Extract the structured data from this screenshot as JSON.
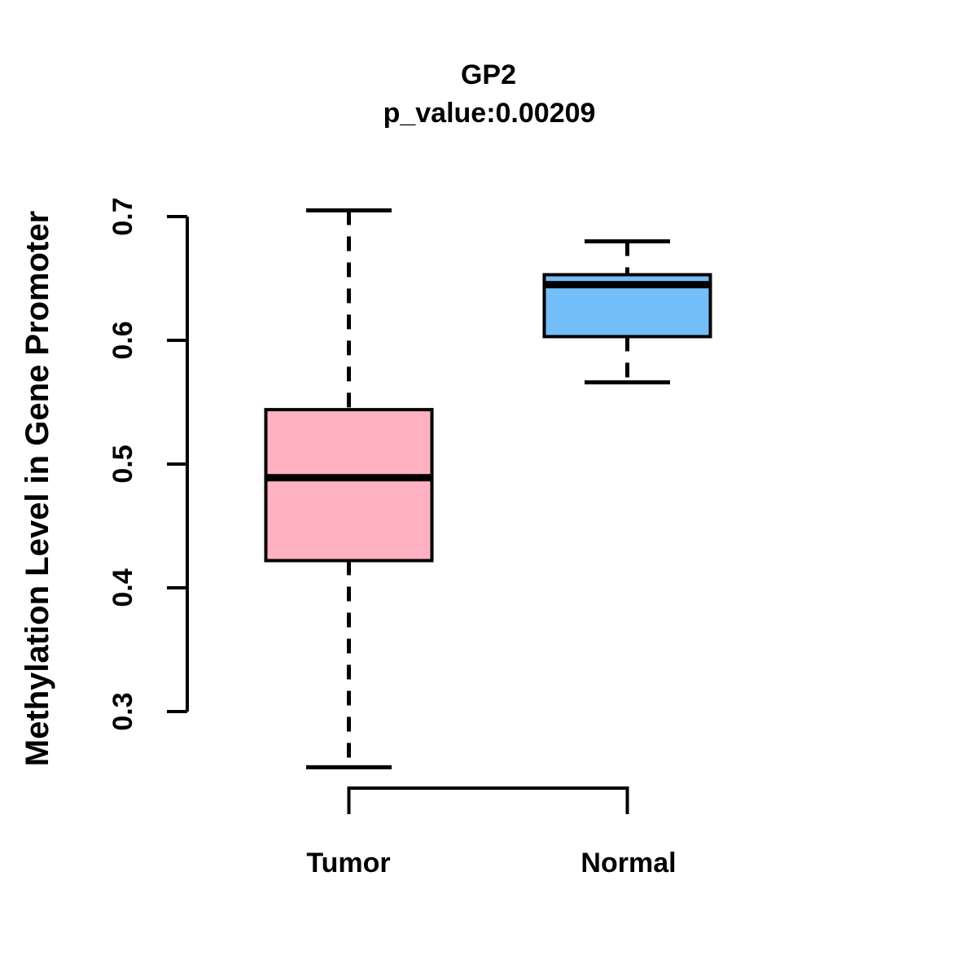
{
  "page": {
    "background": "#FFFFFF",
    "text_color": "#000000"
  },
  "chart_data": {
    "type": "boxplot",
    "title": "GP2",
    "subtitle": "p_value:0.00209",
    "ylabel": "Methylation Level in Gene Promoter",
    "xlabel": "",
    "categories": [
      "Tumor",
      "Normal"
    ],
    "y_ticks": [
      0.3,
      0.4,
      0.5,
      0.6,
      0.7
    ],
    "y_tick_labels": [
      "0.3",
      "0.4",
      "0.5",
      "0.6",
      "0.7"
    ],
    "y_axis_range": [
      0.3,
      0.7
    ],
    "grid": false,
    "legend": "none",
    "stroke_color": "#000000",
    "series": [
      {
        "name": "Tumor",
        "box_fill": "#FFB1C1",
        "whisker_low": 0.255,
        "q1": 0.422,
        "median": 0.489,
        "q3": 0.544,
        "whisker_high": 0.705
      },
      {
        "name": "Normal",
        "box_fill": "#73BEF8",
        "whisker_low": 0.566,
        "q1": 0.603,
        "median": 0.645,
        "q3": 0.653,
        "whisker_high": 0.68
      }
    ]
  }
}
